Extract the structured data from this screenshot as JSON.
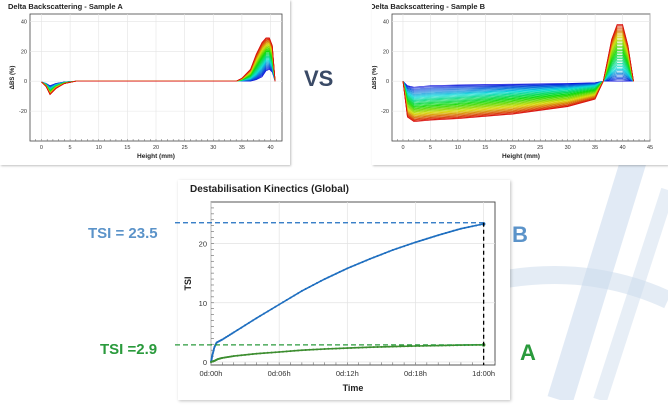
{
  "comparison_label": "VS",
  "colors": {
    "sample_b": "#1f6fc0",
    "sample_a": "#3c8d2f",
    "label_b": "#5b93c9",
    "label_a": "#2a9a3c",
    "vs": "#3a4a66",
    "background_watermark": "#c9d9ec"
  },
  "annotations": {
    "tsi_b": "TSI = 23.5",
    "tsi_a": "TSI =2.9",
    "letter_b": "B",
    "letter_a": "A"
  },
  "chart_data": [
    {
      "type": "line",
      "title": "Delta Backscattering - Sample A",
      "xlabel": "Height (mm)",
      "ylabel": "ΔBS (%)",
      "xlim": [
        -2,
        42
      ],
      "ylim": [
        -40,
        45
      ],
      "xticks": [
        0,
        5,
        10,
        15,
        20,
        25,
        30,
        35,
        40
      ],
      "yticks": [
        -20,
        0,
        20,
        40
      ],
      "xtick_labels": [
        "0",
        "5",
        "10",
        "15",
        "20",
        "25",
        "30",
        "35",
        "40"
      ],
      "ytick_labels": [
        "-20",
        "0",
        "20",
        "40"
      ],
      "grid": true,
      "legend": "none",
      "description": "family of time-resolved curves, colour runs blue (early) to red (late)",
      "series": [
        {
          "values": [
            [
              0,
              -0.5
            ],
            [
              0.8,
              -1.5
            ],
            [
              1.5,
              -3
            ],
            [
              2.5,
              -1.5
            ],
            [
              4,
              -0.5
            ],
            [
              6,
              0
            ],
            [
              34,
              0
            ],
            [
              35,
              0
            ],
            [
              36.5,
              0
            ],
            [
              37.5,
              1
            ],
            [
              38.5,
              3
            ],
            [
              39.2,
              7
            ],
            [
              39.8,
              8
            ],
            [
              40.3,
              6
            ],
            [
              40.8,
              0
            ]
          ]
        },
        {
          "values": [
            [
              0,
              -0.5
            ],
            [
              0.8,
              -2
            ],
            [
              1.5,
              -5
            ],
            [
              2.5,
              -2.5
            ],
            [
              4,
              -0.8
            ],
            [
              6,
              0
            ],
            [
              34,
              0
            ],
            [
              35,
              0.5
            ],
            [
              36.5,
              2
            ],
            [
              37.5,
              5
            ],
            [
              38.5,
              10
            ],
            [
              39.2,
              14
            ],
            [
              39.8,
              14
            ],
            [
              40.3,
              10
            ],
            [
              40.8,
              0
            ]
          ]
        },
        {
          "values": [
            [
              0,
              -0.5
            ],
            [
              0.8,
              -2.5
            ],
            [
              1.5,
              -7
            ],
            [
              2.5,
              -3.5
            ],
            [
              4,
              -1
            ],
            [
              6,
              0
            ],
            [
              34,
              0
            ],
            [
              35,
              1
            ],
            [
              36.5,
              4
            ],
            [
              37.5,
              10
            ],
            [
              38.5,
              16
            ],
            [
              39.2,
              20
            ],
            [
              39.8,
              20
            ],
            [
              40.3,
              15
            ],
            [
              40.8,
              0
            ]
          ]
        },
        {
          "values": [
            [
              0,
              -0.5
            ],
            [
              0.8,
              -3
            ],
            [
              1.5,
              -8
            ],
            [
              2.5,
              -4
            ],
            [
              4,
              -1.5
            ],
            [
              6,
              0
            ],
            [
              34,
              0
            ],
            [
              35,
              1.5
            ],
            [
              36.5,
              6
            ],
            [
              37.5,
              14
            ],
            [
              38.5,
              21
            ],
            [
              39.2,
              24
            ],
            [
              39.8,
              25
            ],
            [
              40.3,
              20
            ],
            [
              40.8,
              0
            ]
          ]
        },
        {
          "values": [
            [
              0,
              -0.5
            ],
            [
              0.8,
              -3.5
            ],
            [
              1.5,
              -9
            ],
            [
              2.5,
              -5
            ],
            [
              4,
              -1.5
            ],
            [
              6,
              0
            ],
            [
              34,
              0
            ],
            [
              35,
              2
            ],
            [
              36.5,
              8
            ],
            [
              37.5,
              18
            ],
            [
              38.5,
              26
            ],
            [
              39.2,
              29
            ],
            [
              39.8,
              29
            ],
            [
              40.3,
              24
            ],
            [
              40.8,
              0
            ]
          ]
        }
      ]
    },
    {
      "type": "line",
      "title": "Delta Backscattering - Sample B",
      "xlabel": "Height (mm)",
      "ylabel": "ΔBS (%)",
      "xlim": [
        -2,
        45
      ],
      "ylim": [
        -40,
        45
      ],
      "xticks": [
        0,
        5,
        10,
        15,
        20,
        25,
        30,
        35,
        40,
        45
      ],
      "yticks": [
        -20,
        0,
        20,
        40
      ],
      "xtick_labels": [
        "0",
        "5",
        "10",
        "15",
        "20",
        "25",
        "30",
        "35",
        "40",
        "45"
      ],
      "ytick_labels": [
        "-20",
        "0",
        "20",
        "40"
      ],
      "grid": true,
      "legend": "none",
      "description": "family of time-resolved curves, colour runs blue (early) to red (late)",
      "series": [
        {
          "values": [
            [
              0,
              0
            ],
            [
              0.8,
              -3
            ],
            [
              2,
              -4
            ],
            [
              5,
              -3
            ],
            [
              10,
              -2.5
            ],
            [
              20,
              -2
            ],
            [
              30,
              -1.5
            ],
            [
              35,
              -1
            ],
            [
              36.5,
              0
            ],
            [
              38,
              0
            ],
            [
              39,
              0
            ],
            [
              40,
              0
            ],
            [
              41,
              0
            ],
            [
              42,
              0
            ]
          ]
        },
        {
          "values": [
            [
              0,
              0
            ],
            [
              0.8,
              -8
            ],
            [
              2,
              -11
            ],
            [
              5,
              -10
            ],
            [
              10,
              -9
            ],
            [
              20,
              -7
            ],
            [
              30,
              -5
            ],
            [
              35,
              -3
            ],
            [
              36.5,
              0
            ],
            [
              38,
              6
            ],
            [
              39,
              9
            ],
            [
              40,
              9
            ],
            [
              41,
              5
            ],
            [
              42,
              0
            ]
          ]
        },
        {
          "values": [
            [
              0,
              0
            ],
            [
              0.8,
              -13
            ],
            [
              2,
              -17
            ],
            [
              5,
              -16
            ],
            [
              10,
              -15
            ],
            [
              20,
              -12
            ],
            [
              30,
              -9
            ],
            [
              35,
              -6
            ],
            [
              36.5,
              0
            ],
            [
              38,
              14
            ],
            [
              39,
              20
            ],
            [
              40,
              20
            ],
            [
              41,
              12
            ],
            [
              42,
              0
            ]
          ]
        },
        {
          "values": [
            [
              0,
              0
            ],
            [
              0.8,
              -19
            ],
            [
              2,
              -22
            ],
            [
              5,
              -21
            ],
            [
              10,
              -20
            ],
            [
              20,
              -17
            ],
            [
              30,
              -13
            ],
            [
              35,
              -9
            ],
            [
              36.5,
              0
            ],
            [
              38,
              22
            ],
            [
              39,
              30
            ],
            [
              40,
              30
            ],
            [
              41,
              19
            ],
            [
              42,
              0
            ]
          ]
        },
        {
          "values": [
            [
              0,
              0
            ],
            [
              0.8,
              -24
            ],
            [
              2,
              -27
            ],
            [
              5,
              -26
            ],
            [
              10,
              -25
            ],
            [
              20,
              -22
            ],
            [
              30,
              -17
            ],
            [
              35,
              -12
            ],
            [
              36.5,
              0
            ],
            [
              38,
              28
            ],
            [
              39,
              38
            ],
            [
              40,
              38
            ],
            [
              41,
              24
            ],
            [
              42,
              0
            ]
          ]
        }
      ]
    },
    {
      "type": "line",
      "title": "Destabilisation Kinectics (Global)",
      "xlabel": "Time",
      "ylabel": "TSI",
      "x_unit": "hours",
      "xlim": [
        0,
        25
      ],
      "ylim": [
        -0.5,
        27
      ],
      "xticks": [
        0,
        6,
        12,
        18,
        24
      ],
      "xtick_labels": [
        "0d:00h",
        "0d:06h",
        "0d:12h",
        "0d:18h",
        "1d:00h"
      ],
      "yticks": [
        0,
        10,
        20
      ],
      "ytick_labels": [
        "0",
        "10",
        "20"
      ],
      "grid": true,
      "legend": "none",
      "reference_lines": [
        {
          "y": 23.5,
          "label": "TSI = 23.5"
        },
        {
          "y": 2.9,
          "label": "TSI =2.9"
        },
        {
          "x": 24
        }
      ],
      "series": [
        {
          "name": "B",
          "values": [
            [
              0,
              0
            ],
            [
              0.1,
              1
            ],
            [
              0.3,
              2.5
            ],
            [
              0.5,
              3.3
            ],
            [
              1,
              3.8
            ],
            [
              2,
              5
            ],
            [
              4,
              7.4
            ],
            [
              6,
              9.7
            ],
            [
              8,
              12
            ],
            [
              10,
              14
            ],
            [
              12,
              15.8
            ],
            [
              14,
              17.4
            ],
            [
              16,
              18.9
            ],
            [
              18,
              20.2
            ],
            [
              20,
              21.4
            ],
            [
              22,
              22.5
            ],
            [
              24,
              23.3
            ]
          ]
        },
        {
          "name": "A",
          "values": [
            [
              0,
              0
            ],
            [
              0.3,
              0.2
            ],
            [
              0.6,
              0.5
            ],
            [
              1,
              0.7
            ],
            [
              2,
              1
            ],
            [
              4,
              1.4
            ],
            [
              6,
              1.7
            ],
            [
              8,
              2
            ],
            [
              10,
              2.2
            ],
            [
              12,
              2.35
            ],
            [
              14,
              2.5
            ],
            [
              16,
              2.6
            ],
            [
              18,
              2.7
            ],
            [
              20,
              2.78
            ],
            [
              22,
              2.85
            ],
            [
              24,
              2.9
            ]
          ]
        }
      ]
    }
  ]
}
